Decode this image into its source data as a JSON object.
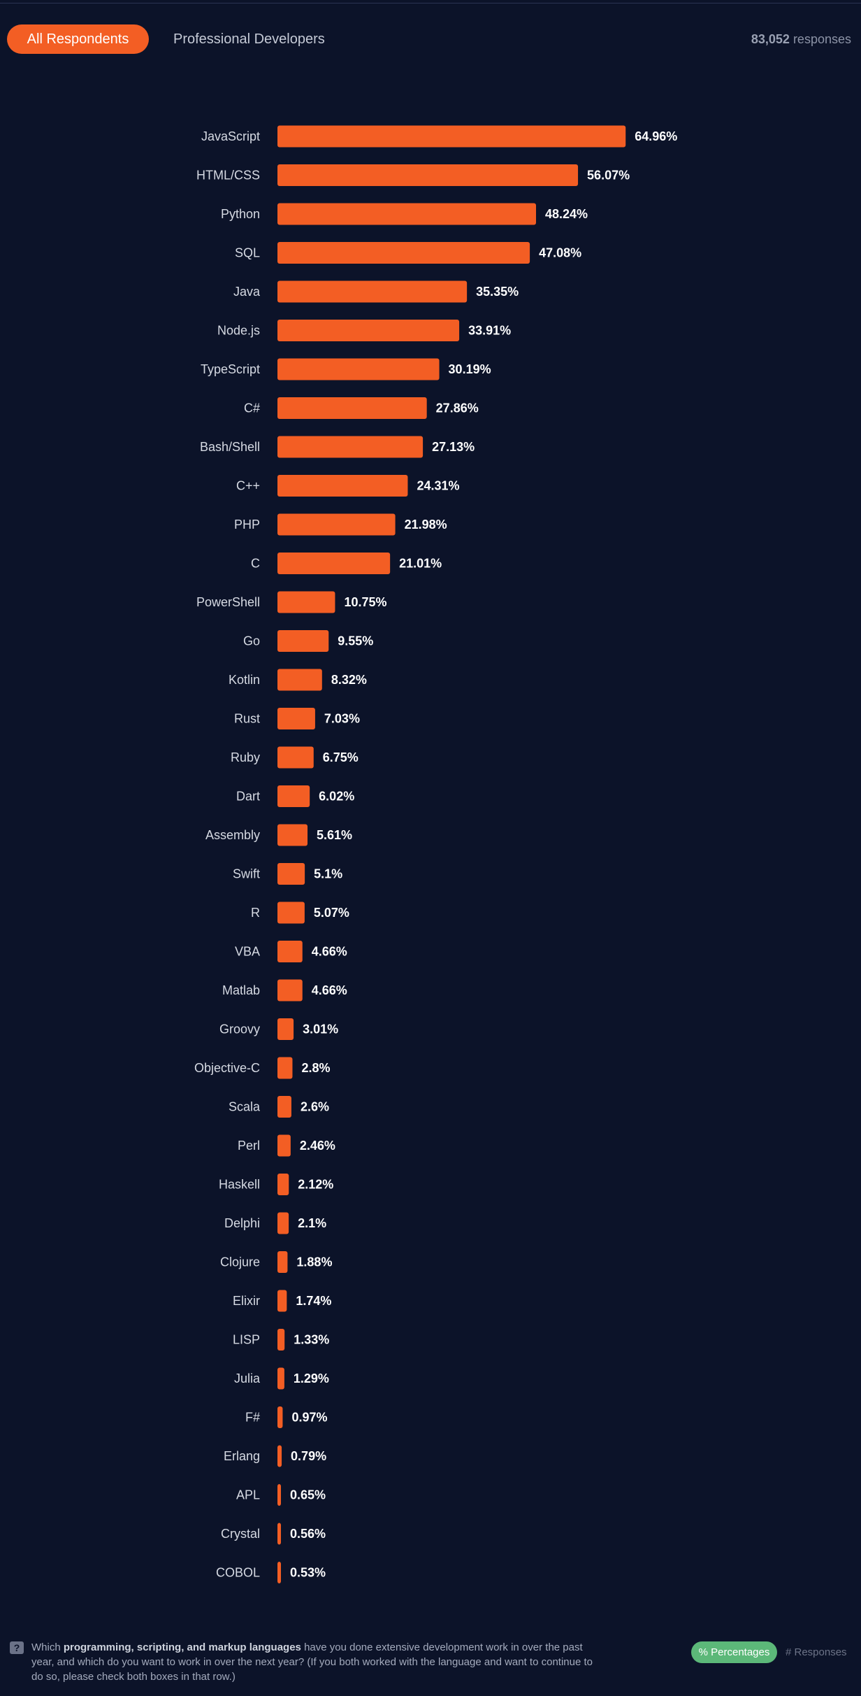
{
  "tabs": {
    "all_respondents": "All Respondents",
    "professional_developers": "Professional Developers"
  },
  "responses": {
    "count": "83,052",
    "label": "responses"
  },
  "question": {
    "prefix": "Which ",
    "bold": "programming, scripting, and markup languages",
    "suffix": " have you done extensive development work in over the past year, and which do you want to work in over the next year? (If you both worked with the language and want to continue to do so, please check both boxes in that row.)"
  },
  "toggles": {
    "percentages": "% Percentages",
    "responses": "# Responses"
  },
  "colors": {
    "background": "#0c1329",
    "bar": "#f35e24",
    "active_tab": "#f35e24",
    "percentages_toggle": "#5cb879"
  },
  "chart_data": {
    "type": "bar",
    "orientation": "horizontal",
    "unit": "%",
    "categories": [
      "JavaScript",
      "HTML/CSS",
      "Python",
      "SQL",
      "Java",
      "Node.js",
      "TypeScript",
      "C#",
      "Bash/Shell",
      "C++",
      "PHP",
      "C",
      "PowerShell",
      "Go",
      "Kotlin",
      "Rust",
      "Ruby",
      "Dart",
      "Assembly",
      "Swift",
      "R",
      "VBA",
      "Matlab",
      "Groovy",
      "Objective-C",
      "Scala",
      "Perl",
      "Haskell",
      "Delphi",
      "Clojure",
      "Elixir",
      "LISP",
      "Julia",
      "F#",
      "Erlang",
      "APL",
      "Crystal",
      "COBOL"
    ],
    "values": [
      64.96,
      56.07,
      48.24,
      47.08,
      35.35,
      33.91,
      30.19,
      27.86,
      27.13,
      24.31,
      21.98,
      21.01,
      10.75,
      9.55,
      8.32,
      7.03,
      6.75,
      6.02,
      5.61,
      5.1,
      5.07,
      4.66,
      4.66,
      3.01,
      2.8,
      2.6,
      2.46,
      2.12,
      2.1,
      1.88,
      1.74,
      1.33,
      1.29,
      0.97,
      0.79,
      0.65,
      0.56,
      0.53
    ],
    "value_labels": [
      "64.96%",
      "56.07%",
      "48.24%",
      "47.08%",
      "35.35%",
      "33.91%",
      "30.19%",
      "27.86%",
      "27.13%",
      "24.31%",
      "21.98%",
      "21.01%",
      "10.75%",
      "9.55%",
      "8.32%",
      "7.03%",
      "6.75%",
      "6.02%",
      "5.61%",
      "5.1%",
      "5.07%",
      "4.66%",
      "4.66%",
      "3.01%",
      "2.8%",
      "2.6%",
      "2.46%",
      "2.12%",
      "2.1%",
      "1.88%",
      "1.74%",
      "1.33%",
      "1.29%",
      "0.97%",
      "0.79%",
      "0.65%",
      "0.56%",
      "0.53%"
    ],
    "xlim": [
      0,
      100
    ],
    "grid": false,
    "legend": false
  }
}
